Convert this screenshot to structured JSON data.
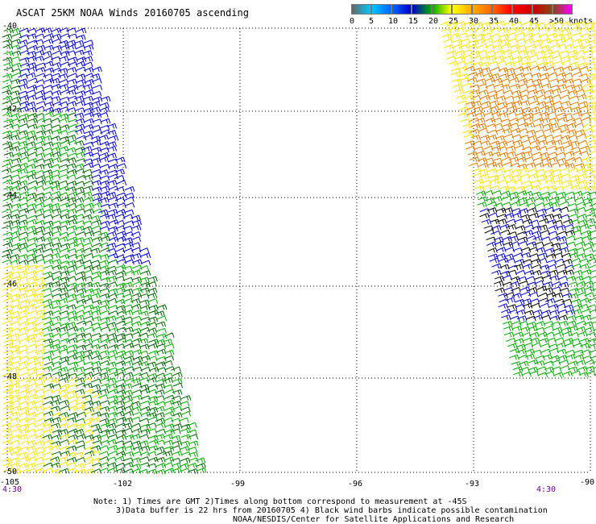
{
  "title": "ASCAT 25KM NOAA Winds 20160705 ascending",
  "colorbar": {
    "colors": [
      "#666666",
      "#00c8ff",
      "#0066ff",
      "#0000cc",
      "#00aa00",
      "#ffff00",
      "#ffaa00",
      "#ff6600",
      "#ff0000",
      "#cc0000",
      "#8b4513",
      "#ff00ff",
      "#8800cc",
      "#5500aa"
    ],
    "labels": [
      "0",
      "5",
      "10",
      "15",
      "20",
      "25",
      "30",
      "35",
      "40",
      "45",
      ">50 knots"
    ]
  },
  "map": {
    "lat_labels": [
      "-40",
      "-42",
      "-44",
      "-46",
      "-48",
      "-50"
    ],
    "lon_labels": [
      "-105",
      "-102",
      "-99",
      "-96",
      "-93",
      "-90"
    ],
    "time_labels": [
      "4:30",
      "4:30"
    ]
  },
  "notes": [
    "Note: 1) Times are GMT 2)Times along bottom correspond to measurement at -45S",
    "3)Data buffer is 22 hrs from 20160705 4) Black wind barbs indicate possible contamination",
    "NOAA/NESDIS/Center for Satellite Applications and Research"
  ],
  "barb_colors": {
    "blue": "#0000cc",
    "green": "#00aa00",
    "dark_green": "#006400",
    "yellow": "#ffe600",
    "orange": "#e07a00",
    "black": "#000000"
  }
}
